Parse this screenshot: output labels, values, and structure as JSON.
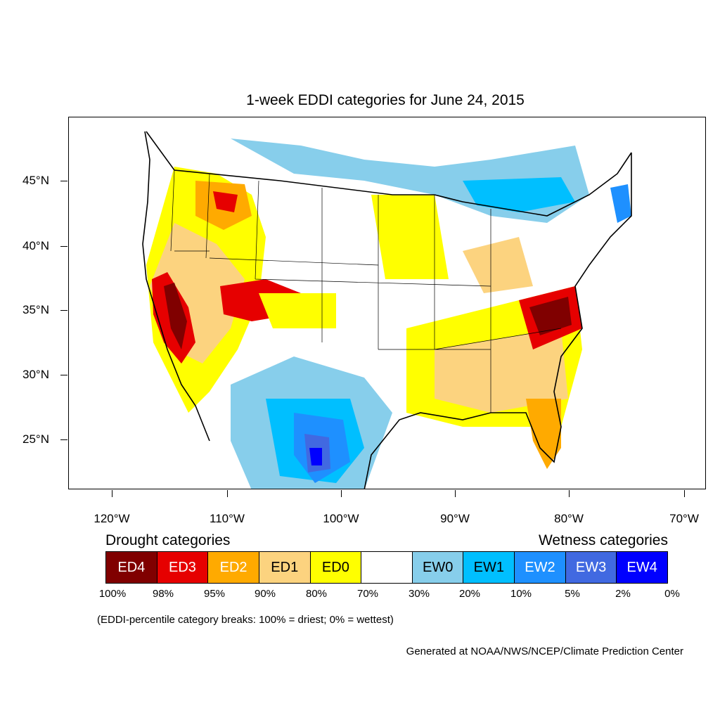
{
  "title": "1-week EDDI categories for June 24, 2015",
  "lat_labels": [
    "45°N",
    "40°N",
    "35°N",
    "30°N",
    "25°N"
  ],
  "lon_labels": [
    "120°W",
    "110°W",
    "100°W",
    "90°W",
    "80°W",
    "70°W"
  ],
  "drought_header": "Drought categories",
  "wetness_header": "Wetness categories",
  "legend": [
    {
      "label": "ED4",
      "color": "#800000",
      "text_color": "#ffffff"
    },
    {
      "label": "ED3",
      "color": "#e60000",
      "text_color": "#ffffff"
    },
    {
      "label": "ED2",
      "color": "#ffaa00",
      "text_color": "#ffffff"
    },
    {
      "label": "ED1",
      "color": "#fcd37f",
      "text_color": "#000000"
    },
    {
      "label": "ED0",
      "color": "#ffff00",
      "text_color": "#000000"
    },
    {
      "label": "",
      "color": "#ffffff",
      "text_color": "#000000"
    },
    {
      "label": "EW0",
      "color": "#87ceeb",
      "text_color": "#000000"
    },
    {
      "label": "EW1",
      "color": "#00bfff",
      "text_color": "#000000"
    },
    {
      "label": "EW2",
      "color": "#1e90ff",
      "text_color": "#ffffff"
    },
    {
      "label": "EW3",
      "color": "#4169e1",
      "text_color": "#ffffff"
    },
    {
      "label": "EW4",
      "color": "#0000ff",
      "text_color": "#ffffff"
    }
  ],
  "percent_breaks": [
    "100%",
    "98%",
    "95%",
    "90%",
    "80%",
    "70%",
    "30%",
    "20%",
    "10%",
    "5%",
    "2%",
    "0%"
  ],
  "note": "(EDDI-percentile category breaks: 100% = driest; 0% = wettest)",
  "credit": "Generated at NOAA/NWS/NCEP/Climate Prediction Center"
}
